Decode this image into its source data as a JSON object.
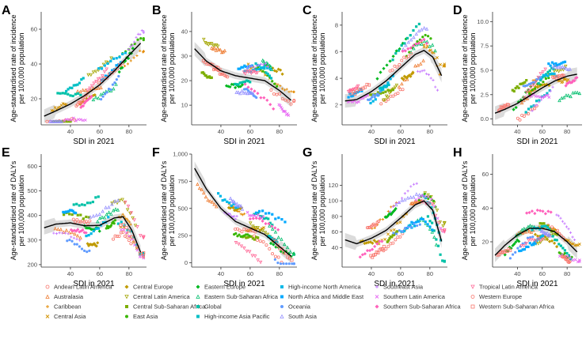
{
  "chart_data": [
    {
      "panel": "A",
      "type": "scatter",
      "title": "",
      "xlabel": "SDI in 2021",
      "ylabel": "Age-standardised rate of incidence per 100,000 population",
      "xlim": [
        20,
        92
      ],
      "ylim": [
        5,
        70
      ],
      "yticks": [
        20,
        40,
        60
      ],
      "xticks": [
        40,
        60,
        80
      ],
      "trend": {
        "x": [
          22,
          30,
          40,
          50,
          60,
          70,
          80,
          88
        ],
        "y": [
          10,
          13,
          17,
          22,
          28,
          36,
          45,
          52
        ]
      }
    },
    {
      "panel": "B",
      "type": "scatter",
      "title": "",
      "xlabel": "SDI in 2021",
      "ylabel": "Age-standardised rate of incidence per 100,000 population",
      "xlim": [
        20,
        92
      ],
      "ylim": [
        2,
        48
      ],
      "yticks": [
        10,
        20,
        30,
        40
      ],
      "xticks": [
        40,
        60,
        80
      ],
      "trend": {
        "x": [
          22,
          30,
          40,
          50,
          60,
          70,
          80,
          88
        ],
        "y": [
          33,
          28,
          24,
          22,
          21,
          20,
          16,
          12
        ]
      }
    },
    {
      "panel": "C",
      "type": "scatter",
      "title": "",
      "xlabel": "SDI in 2021",
      "ylabel": "Age-standardised rate of incidence per 100,000 population",
      "xlim": [
        20,
        92
      ],
      "ylim": [
        0.5,
        9
      ],
      "yticks": [
        2,
        4,
        6,
        8
      ],
      "xticks": [
        40,
        60,
        80
      ],
      "trend": {
        "x": [
          22,
          30,
          40,
          50,
          60,
          70,
          76,
          82,
          88
        ],
        "y": [
          2.3,
          2.4,
          3.0,
          3.8,
          4.8,
          5.8,
          6.1,
          5.6,
          4.2
        ]
      }
    },
    {
      "panel": "D",
      "type": "scatter",
      "title": "",
      "xlabel": "SDI in 2021",
      "ylabel": "Age-standardised rate of incidence per 100,000 population",
      "xlim": [
        20,
        92
      ],
      "ylim": [
        -0.6,
        11
      ],
      "yticks": [
        0.0,
        2.5,
        5.0,
        7.5,
        10.0
      ],
      "ytick_labels": [
        "0.0",
        "2.5",
        "5.0",
        "7.5",
        "10.0"
      ],
      "xticks": [
        40,
        60,
        80
      ],
      "trend": {
        "x": [
          22,
          30,
          40,
          50,
          60,
          70,
          80,
          88
        ],
        "y": [
          0.6,
          1.0,
          1.6,
          2.4,
          3.2,
          3.9,
          4.4,
          4.6
        ]
      }
    },
    {
      "panel": "E",
      "type": "scatter",
      "title": "",
      "xlabel": "SDI in 2021",
      "ylabel": "Age-standardised rate of DALYs per 100,000 population",
      "xlim": [
        20,
        92
      ],
      "ylim": [
        190,
        650
      ],
      "yticks": [
        200,
        300,
        400,
        500,
        600
      ],
      "xticks": [
        40,
        60,
        80
      ],
      "trend": {
        "x": [
          22,
          30,
          40,
          50,
          60,
          70,
          76,
          82,
          88
        ],
        "y": [
          350,
          365,
          370,
          358,
          360,
          390,
          395,
          340,
          250
        ]
      }
    },
    {
      "panel": "F",
      "type": "scatter",
      "title": "",
      "xlabel": "SDI in 2021",
      "ylabel": "Age-standardised rate of DALYs per 100,000 population",
      "xlim": [
        20,
        92
      ],
      "ylim": [
        -40,
        1000
      ],
      "yticks": [
        0,
        250,
        500,
        750,
        1000
      ],
      "ytick_labels": [
        "0",
        "250",
        "500",
        "750",
        "1,000"
      ],
      "xticks": [
        40,
        60,
        80
      ],
      "trend": {
        "x": [
          22,
          30,
          40,
          50,
          60,
          70,
          80,
          88
        ],
        "y": [
          870,
          680,
          500,
          380,
          320,
          260,
          150,
          60
        ]
      }
    },
    {
      "panel": "G",
      "type": "scatter",
      "title": "",
      "xlabel": "SDI in 2021",
      "ylabel": "Age-standardised rate of DALYs per 100,000 population",
      "xlim": [
        20,
        92
      ],
      "ylim": [
        15,
        160
      ],
      "yticks": [
        40,
        60,
        80,
        100,
        120
      ],
      "xticks": [
        40,
        60,
        80
      ],
      "trend": {
        "x": [
          22,
          30,
          40,
          50,
          60,
          70,
          76,
          82,
          88
        ],
        "y": [
          50,
          45,
          52,
          62,
          78,
          95,
          100,
          88,
          48
        ]
      }
    },
    {
      "panel": "H",
      "type": "scatter",
      "title": "",
      "xlabel": "SDI in 2021",
      "ylabel": "Age-standardised rate of DALYs per 100,000 population",
      "xlim": [
        20,
        92
      ],
      "ylim": [
        5,
        72
      ],
      "yticks": [
        20,
        40,
        60
      ],
      "xticks": [
        40,
        60,
        80
      ],
      "trend": {
        "x": [
          22,
          30,
          40,
          50,
          60,
          70,
          80,
          88
        ],
        "y": [
          12,
          18,
          24,
          28,
          28,
          26,
          20,
          14
        ]
      }
    }
  ],
  "legend": [
    {
      "label": "Andean Latin America",
      "color": "#F8766D",
      "shape": "circle"
    },
    {
      "label": "Australasia",
      "color": "#EE7B30",
      "shape": "triangle"
    },
    {
      "label": "Caribbean",
      "color": "#E38900",
      "shape": "plus"
    },
    {
      "label": "Central Asia",
      "color": "#D39200",
      "shape": "cross"
    },
    {
      "label": "Central Europe",
      "color": "#C09B00",
      "shape": "diamond"
    },
    {
      "label": "Central Latin America",
      "color": "#A3A500",
      "shape": "triangle-down"
    },
    {
      "label": "Central Sub-Saharan Africa",
      "color": "#7CAE00",
      "shape": "square"
    },
    {
      "label": "East Asia",
      "color": "#39B600",
      "shape": "dot"
    },
    {
      "label": "Eastern Europe",
      "color": "#00B81F",
      "shape": "diamond"
    },
    {
      "label": "Eastern Sub-Saharan Africa",
      "color": "#00BE6C",
      "shape": "triangle"
    },
    {
      "label": "Global",
      "color": "#00C1A7",
      "shape": "square"
    },
    {
      "label": "High-income Asia Pacific",
      "color": "#00BFC4",
      "shape": "square"
    },
    {
      "label": "High-income North America",
      "color": "#00B8E7",
      "shape": "square"
    },
    {
      "label": "North Africa and Middle East",
      "color": "#00A9FF",
      "shape": "square"
    },
    {
      "label": "Oceania",
      "color": "#619CFF",
      "shape": "dot"
    },
    {
      "label": "South Asia",
      "color": "#9590FF",
      "shape": "triangle"
    },
    {
      "label": "Southeast Asia",
      "color": "#C77CFF",
      "shape": "plus"
    },
    {
      "label": "Southern Latin America",
      "color": "#E76BF3",
      "shape": "cross"
    },
    {
      "label": "Southern Sub-Saharan Africa",
      "color": "#FF62BC",
      "shape": "diamond"
    },
    {
      "label": "Tropical Latin America",
      "color": "#FF6A98",
      "shape": "triangle-down"
    },
    {
      "label": "Western Europe",
      "color": "#F8766D",
      "shape": "circle"
    },
    {
      "label": "Western Sub-Saharan Africa",
      "color": "#F8766D",
      "shape": "square-open"
    }
  ]
}
